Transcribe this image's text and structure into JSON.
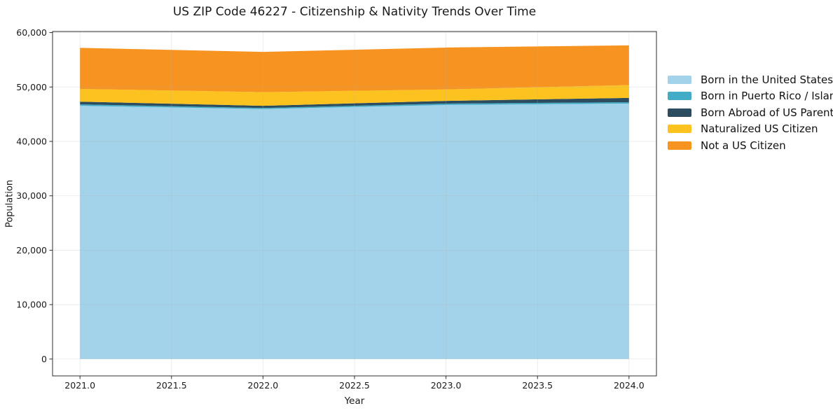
{
  "figure": {
    "title": "US ZIP Code 46227 - Citizenship & Nativity Trends Over Time",
    "xlabel": "Year",
    "ylabel": "Population"
  },
  "chart_data": {
    "type": "area",
    "stacked": true,
    "title": "US ZIP Code 46227 - Citizenship & Nativity Trends Over Time",
    "xlabel": "Year",
    "ylabel": "Population",
    "x": [
      2021,
      2022,
      2023,
      2024
    ],
    "series": [
      {
        "name": "Born in the United States",
        "color": "#a3d3ea",
        "values": [
          46550,
          45950,
          46700,
          46950
        ]
      },
      {
        "name": "Born in Puerto Rico / Islands",
        "color": "#42abc5",
        "values": [
          250,
          200,
          250,
          250
        ]
      },
      {
        "name": "Born Abroad of US Parent(s)",
        "color": "#2b4d5f",
        "values": [
          500,
          400,
          500,
          800
        ]
      },
      {
        "name": "Naturalized US Citizen",
        "color": "#fcc320",
        "values": [
          2350,
          2500,
          2100,
          2350
        ]
      },
      {
        "name": "Not a US Citizen",
        "color": "#f79421",
        "values": [
          7550,
          7400,
          7700,
          7300
        ]
      }
    ],
    "stacked_totals": [
      57200,
      56450,
      57250,
      57650
    ],
    "xlim": [
      2020.85,
      2024.15
    ],
    "ylim": [
      -3100,
      60200
    ],
    "xticks": {
      "values": [
        2021.0,
        2021.5,
        2022.0,
        2022.5,
        2023.0,
        2023.5,
        2024.0
      ],
      "labels": [
        "2021.0",
        "2021.5",
        "2022.0",
        "2022.5",
        "2023.0",
        "2023.5",
        "2024.0"
      ]
    },
    "yticks": {
      "values": [
        0,
        10000,
        20000,
        30000,
        40000,
        50000,
        60000
      ],
      "labels": [
        "0",
        "10,000",
        "20,000",
        "30,000",
        "40,000",
        "50,000",
        "60,000"
      ]
    },
    "grid": true,
    "grid_color": "#b0b0b0",
    "grid_opacity": 0.3,
    "spine_color": "#2e2e2e",
    "legend_position": "right-outside"
  }
}
